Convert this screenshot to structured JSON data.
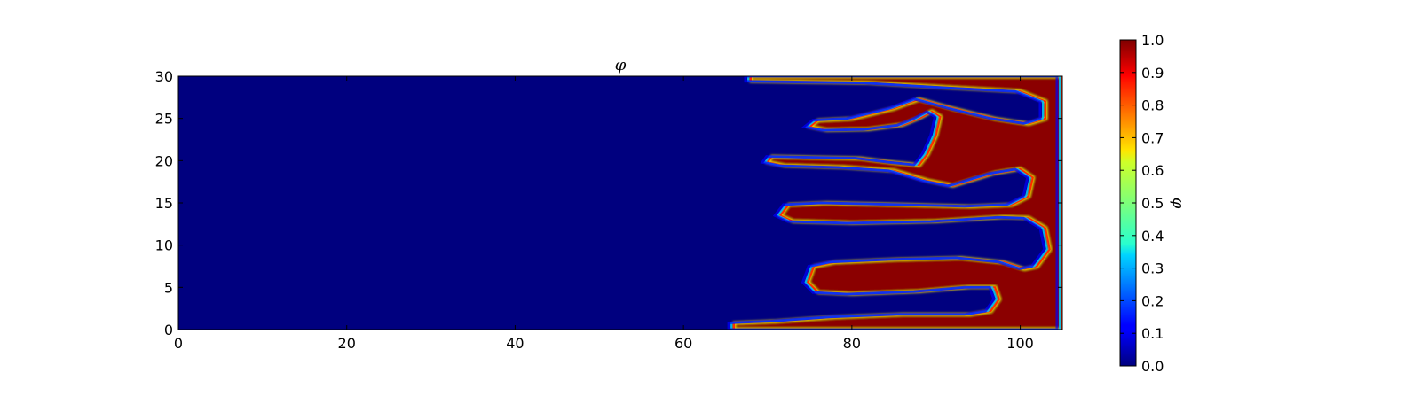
{
  "chart_data": {
    "type": "heatmap",
    "title": "φ",
    "xlabel": "",
    "ylabel": "",
    "xlim": [
      0,
      105
    ],
    "ylim": [
      0,
      30
    ],
    "x_ticks": [
      "0",
      "20",
      "40",
      "60",
      "80",
      "100"
    ],
    "y_ticks": [
      "0",
      "5",
      "10",
      "15",
      "20",
      "25",
      "30"
    ],
    "grid": false,
    "colormap": "jet",
    "colorbar": {
      "label": "φ",
      "range": [
        0.0,
        1.0
      ],
      "ticks": [
        "0.0",
        "0.1",
        "0.2",
        "0.3",
        "0.4",
        "0.5",
        "0.6",
        "0.7",
        "0.8",
        "0.9",
        "1.0"
      ]
    },
    "field_description_values": {
      "background_left_value": 0.0,
      "background_right_value": 1.0,
      "front_x_range": [
        65,
        105
      ],
      "finger_y_centers": [
        1.5,
        5.0,
        11.5,
        14.5,
        20.0,
        24.5,
        28.5
      ]
    }
  },
  "colors": {
    "low": "#00007f",
    "high": "#7f0000"
  }
}
